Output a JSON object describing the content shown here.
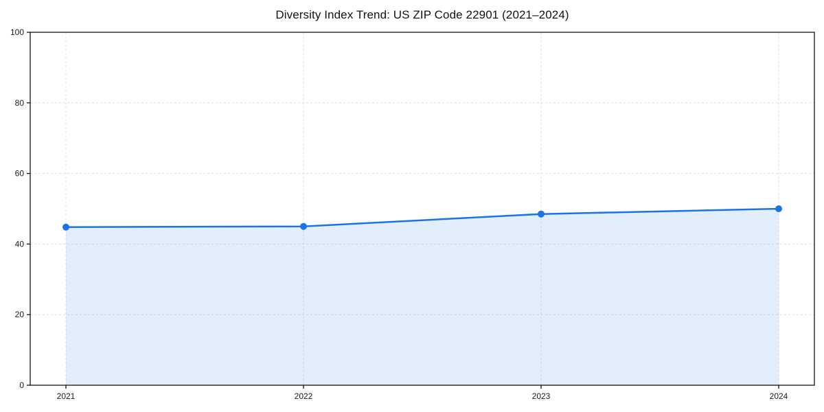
{
  "title": "Diversity Index Trend: US ZIP Code 22901 (2021–2024)",
  "colors": {
    "line": "#1a73e8",
    "fill": "#1a73e8",
    "fill_opacity": 0.12,
    "grid": "#dcdcdc",
    "axis": "#000000",
    "tick_label": "#1a1a1a",
    "background": "#ffffff"
  },
  "chart_data": {
    "type": "line",
    "title": "Diversity Index Trend: US ZIP Code 22901 (2021–2024)",
    "categories": [
      "2021",
      "2022",
      "2023",
      "2024"
    ],
    "values": [
      44.8,
      45.0,
      48.5,
      50.0
    ],
    "series_name": "Diversity Index",
    "xlabel": "",
    "ylabel": "",
    "ylim": [
      0,
      100
    ],
    "yticks": [
      0,
      20,
      40,
      60,
      80,
      100
    ],
    "grid": true,
    "grid_style": "dashed",
    "marker": "circle",
    "marker_radius": 5,
    "line_width": 2.5,
    "area_fill": true,
    "legend_position": "none"
  }
}
